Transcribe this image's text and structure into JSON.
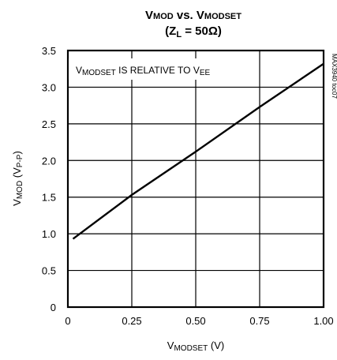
{
  "chart_data": {
    "type": "line",
    "title_main": "V",
    "title_main_sub": "MOD",
    "title_vs": " vs. V",
    "title_vs_sub": "MODSET",
    "title_line2_pre": "(Z",
    "title_line2_sub": "L",
    "title_line2_post": " = 50Ω)",
    "xlabel_main": "V",
    "xlabel_sub": "MODSET",
    "xlabel_unit": " (V)",
    "ylabel_main": "V",
    "ylabel_sub": "MOD",
    "ylabel_mid": " (V",
    "ylabel_sub2": "P-P",
    "ylabel_end": ")",
    "annotation_pre": "V",
    "annotation_sub": "MODSET",
    "annotation_mid": " IS RELATIVE TO V",
    "annotation_sub2": "EE",
    "side_label": "MAX3940 toc07",
    "xlim": [
      0,
      1.0
    ],
    "ylim": [
      0,
      3.5
    ],
    "x_ticks": [
      0,
      0.25,
      0.5,
      0.75,
      1.0
    ],
    "x_tick_labels": [
      "0",
      "0.25",
      "0.50",
      "0.75",
      "1.00"
    ],
    "y_ticks": [
      0,
      0.5,
      1.0,
      1.5,
      2.0,
      2.5,
      3.0,
      3.5
    ],
    "y_tick_labels": [
      "0",
      "0.5",
      "1.0",
      "1.5",
      "2.0",
      "2.5",
      "3.0",
      "3.5"
    ],
    "grid": true,
    "series": [
      {
        "x": [
          0.02,
          0.25,
          0.5,
          0.75,
          1.0
        ],
        "y": [
          0.93,
          1.53,
          2.12,
          2.73,
          3.32
        ],
        "color": "#000000"
      }
    ]
  }
}
